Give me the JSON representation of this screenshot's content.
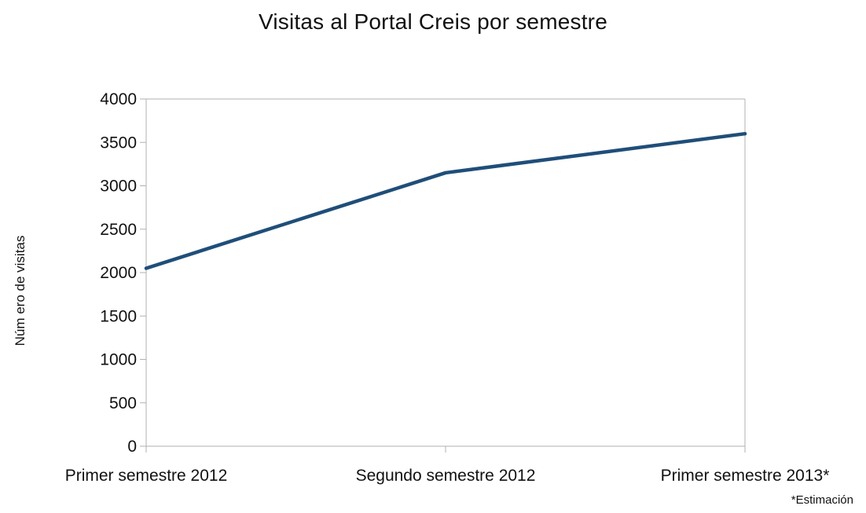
{
  "chart_data": {
    "type": "line",
    "title": "Visitas al Portal Creis por semestre",
    "xlabel": "",
    "ylabel": "Núm ero de visitas",
    "categories": [
      "Primer semestre 2012",
      "Segundo semestre 2012",
      "Primer semestre 2013*"
    ],
    "series": [
      {
        "values": [
          2050,
          3150,
          3600
        ],
        "color": "#1f4e79"
      }
    ],
    "ylim": [
      0,
      4000
    ],
    "yticks": [
      0,
      500,
      1000,
      1500,
      2000,
      2500,
      3000,
      3500,
      4000
    ],
    "grid": false,
    "legend": "none",
    "footnote": "*Estimación"
  }
}
